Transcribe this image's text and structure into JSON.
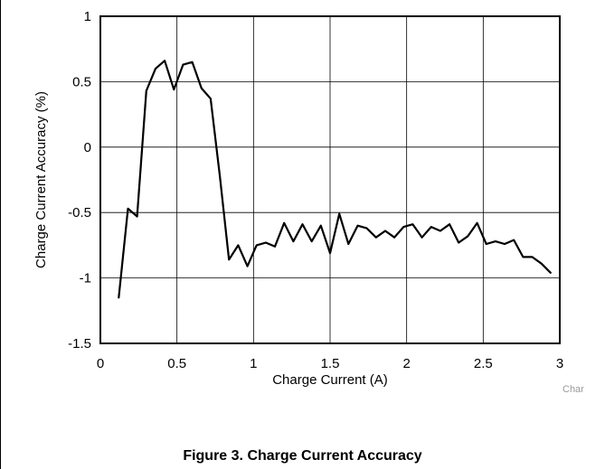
{
  "chart_data": {
    "type": "line",
    "title": "",
    "xlabel": "Charge Current (A)",
    "ylabel": "Charge Current Accuracy (%)",
    "xlim": [
      0,
      3
    ],
    "ylim": [
      -1.5,
      1
    ],
    "xticks": [
      0,
      0.5,
      1,
      1.5,
      2,
      2.5,
      3
    ],
    "xtick_labels": [
      "0",
      "0.5",
      "1",
      "1.5",
      "2",
      "2.5",
      "3"
    ],
    "yticks": [
      -1.5,
      -1,
      -0.5,
      0,
      0.5,
      1
    ],
    "ytick_labels": [
      "-1.5",
      "-1",
      "-0.5",
      "0",
      "0.5",
      "1"
    ],
    "grid": true,
    "line_color": "#000000",
    "series": [
      {
        "x": [
          0.12,
          0.18,
          0.24,
          0.3,
          0.36,
          0.42,
          0.48,
          0.54,
          0.6,
          0.66,
          0.72,
          0.78,
          0.84,
          0.9,
          0.96,
          1.02,
          1.08,
          1.14,
          1.2,
          1.26,
          1.32,
          1.38,
          1.44,
          1.5,
          1.56,
          1.62,
          1.68,
          1.74,
          1.8,
          1.86,
          1.92,
          1.98,
          2.04,
          2.1,
          2.16,
          2.22,
          2.28,
          2.34,
          2.4,
          2.46,
          2.52,
          2.58,
          2.64,
          2.7,
          2.76,
          2.82,
          2.88,
          2.94
        ],
        "y": [
          -1.15,
          -0.47,
          -0.53,
          0.43,
          0.6,
          0.66,
          0.44,
          0.63,
          0.65,
          0.45,
          0.37,
          -0.22,
          -0.86,
          -0.75,
          -0.91,
          -0.75,
          -0.73,
          -0.76,
          -0.58,
          -0.72,
          -0.59,
          -0.72,
          -0.6,
          -0.81,
          -0.51,
          -0.74,
          -0.6,
          -0.62,
          -0.69,
          -0.64,
          -0.69,
          -0.61,
          -0.59,
          -0.69,
          -0.61,
          -0.64,
          -0.59,
          -0.73,
          -0.68,
          -0.58,
          -0.74,
          -0.72,
          -0.74,
          -0.71,
          -0.84,
          -0.84,
          -0.89,
          -0.96
        ]
      }
    ]
  },
  "watermark": "Char",
  "caption": "Figure 3. Charge Current Accuracy"
}
